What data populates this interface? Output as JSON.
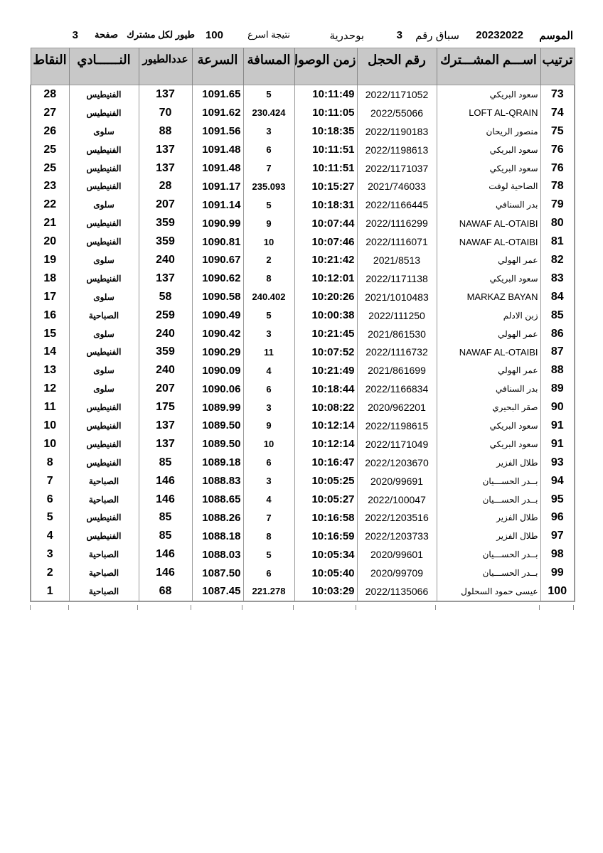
{
  "header": {
    "season_label": "الموسم",
    "season": "20232022",
    "race_label": "سباق رقم",
    "race_no": "3",
    "location": "بوحدرية",
    "result_label": "نتيجة اسرع",
    "count": "100",
    "per_label": "طيور لكل مشترك",
    "page_label": "صفحة",
    "page_no": "3"
  },
  "columns": [
    "ترتيب",
    "اســـم المشـــترك",
    "رقم الحجل",
    "زمن الوصول",
    "المسافة",
    "السرعة",
    "عددالطيور",
    "النــــــادي",
    "النقاط"
  ],
  "rows": [
    [
      "73",
      "سعود البريكي",
      "2022/1171052",
      "10:11:49",
      "5",
      "1091.65",
      "137",
      "الفنيطيس",
      "28"
    ],
    [
      "74",
      "LOFT AL-QRAIN",
      "2022/55066",
      "10:11:05",
      "230.424",
      "1091.62",
      "70",
      "الفنيطيس",
      "27"
    ],
    [
      "75",
      "منصور الريحان",
      "2022/1190183",
      "10:18:35",
      "3",
      "1091.56",
      "88",
      "سلوى",
      "26"
    ],
    [
      "76",
      "سعود البريكي",
      "2022/1198613",
      "10:11:51",
      "6",
      "1091.48",
      "137",
      "الفنيطيس",
      "25"
    ],
    [
      "76",
      "سعود البريكي",
      "2022/1171037",
      "10:11:51",
      "7",
      "1091.48",
      "137",
      "الفنيطيس",
      "25"
    ],
    [
      "78",
      "الضاحية لوفت",
      "2021/746033",
      "10:15:27",
      "235.093",
      "1091.17",
      "28",
      "الفنيطيس",
      "23"
    ],
    [
      "79",
      "بدر السنافي",
      "2022/1166445",
      "10:18:31",
      "5",
      "1091.14",
      "207",
      "سلوى",
      "22"
    ],
    [
      "80",
      "NAWAF AL-OTAIBI",
      "2022/1116299",
      "10:07:44",
      "9",
      "1090.99",
      "359",
      "الفنيطيس",
      "21"
    ],
    [
      "81",
      "NAWAF AL-OTAIBI",
      "2022/1116071",
      "10:07:46",
      "10",
      "1090.81",
      "359",
      "الفنيطيس",
      "20"
    ],
    [
      "82",
      "عمر الهولي",
      "2021/8513",
      "10:21:42",
      "2",
      "1090.67",
      "240",
      "سلوى",
      "19"
    ],
    [
      "83",
      "سعود البريكي",
      "2022/1171138",
      "10:12:01",
      "8",
      "1090.62",
      "137",
      "الفنيطيس",
      "18"
    ],
    [
      "84",
      "MARKAZ BAYAN",
      "2021/1010483",
      "10:20:26",
      "240.402",
      "1090.58",
      "58",
      "سلوى",
      "17"
    ],
    [
      "85",
      "زبن الادلم",
      "2022/111250",
      "10:00:38",
      "5",
      "1090.49",
      "259",
      "الصباحية",
      "16"
    ],
    [
      "86",
      "عمر الهولي",
      "2021/861530",
      "10:21:45",
      "3",
      "1090.42",
      "240",
      "سلوى",
      "15"
    ],
    [
      "87",
      "NAWAF AL-OTAIBI",
      "2022/1116732",
      "10:07:52",
      "11",
      "1090.29",
      "359",
      "الفنيطيس",
      "14"
    ],
    [
      "88",
      "عمر الهولي",
      "2021/861699",
      "10:21:49",
      "4",
      "1090.09",
      "240",
      "سلوى",
      "13"
    ],
    [
      "89",
      "بدر السنافي",
      "2022/1166834",
      "10:18:44",
      "6",
      "1090.06",
      "207",
      "سلوى",
      "12"
    ],
    [
      "90",
      "صقر البحيري",
      "2020/962201",
      "10:08:22",
      "3",
      "1089.99",
      "175",
      "الفنيطيس",
      "11"
    ],
    [
      "91",
      "سعود البريكي",
      "2022/1198615",
      "10:12:14",
      "9",
      "1089.50",
      "137",
      "الفنيطيس",
      "10"
    ],
    [
      "91",
      "سعود البريكي",
      "2022/1171049",
      "10:12:14",
      "10",
      "1089.50",
      "137",
      "الفنيطيس",
      "10"
    ],
    [
      "93",
      "طلال الفزير",
      "2022/1203670",
      "10:16:47",
      "6",
      "1089.18",
      "85",
      "الفنيطيس",
      "8"
    ],
    [
      "94",
      "بــدر الحســـيان",
      "2020/99691",
      "10:05:25",
      "3",
      "1088.83",
      "146",
      "الصباحية",
      "7"
    ],
    [
      "95",
      "بــدر الحســـيان",
      "2022/100047",
      "10:05:27",
      "4",
      "1088.65",
      "146",
      "الصباحية",
      "6"
    ],
    [
      "96",
      "طلال الفزير",
      "2022/1203516",
      "10:16:58",
      "7",
      "1088.26",
      "85",
      "الفنيطيس",
      "5"
    ],
    [
      "97",
      "طلال الفزير",
      "2022/1203733",
      "10:16:59",
      "8",
      "1088.18",
      "85",
      "الفنيطيس",
      "4"
    ],
    [
      "98",
      "بــدر الحســـيان",
      "2020/99601",
      "10:05:34",
      "5",
      "1088.03",
      "146",
      "الصباحية",
      "3"
    ],
    [
      "99",
      "بــدر الحســـيان",
      "2020/99709",
      "10:05:40",
      "6",
      "1087.50",
      "146",
      "الصباحية",
      "2"
    ],
    [
      "100",
      "عيسى حمود السحلول",
      "2022/1135066",
      "10:03:29",
      "221.278",
      "1087.45",
      "68",
      "الصباحية",
      "1"
    ]
  ]
}
